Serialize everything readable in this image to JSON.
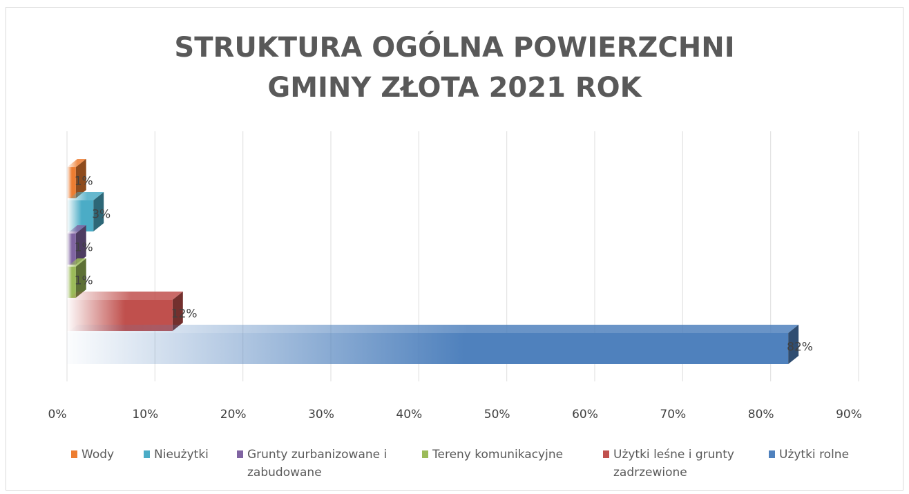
{
  "chart_data": {
    "type": "bar",
    "orientation": "horizontal",
    "title": "STRUKTURA OGÓLNA POWIERZCHNI GMINY ZŁOTA 2021 ROK",
    "series": [
      {
        "name": "Wody",
        "color": "#ed7d31",
        "values": [
          1
        ],
        "value_labels": [
          "1%"
        ]
      },
      {
        "name": "Nieużytki",
        "color": "#4bacc6",
        "values": [
          3
        ],
        "value_labels": [
          "3%"
        ]
      },
      {
        "name": "Grunty zurbanizowane i zabudowane",
        "color": "#8064a2",
        "values": [
          1
        ],
        "value_labels": [
          "1%"
        ]
      },
      {
        "name": "Tereny komunikacyjne",
        "color": "#9bbb59",
        "values": [
          1
        ],
        "value_labels": [
          "1%"
        ]
      },
      {
        "name": "Użytki leśne i grunty zadrzewione",
        "color": "#c0504d",
        "values": [
          12
        ],
        "value_labels": [
          "12%"
        ]
      },
      {
        "name": "Użytki rolne",
        "color": "#4f81bd",
        "values": [
          82
        ],
        "value_labels": [
          "82%"
        ]
      }
    ],
    "xlim": [
      0,
      90
    ],
    "xticks": [
      {
        "value": 0,
        "label": "0%"
      },
      {
        "value": 10,
        "label": "10%"
      },
      {
        "value": 20,
        "label": "20%"
      },
      {
        "value": 30,
        "label": "30%"
      },
      {
        "value": 40,
        "label": "40%"
      },
      {
        "value": 50,
        "label": "50%"
      },
      {
        "value": 60,
        "label": "60%"
      },
      {
        "value": 70,
        "label": "70%"
      },
      {
        "value": 80,
        "label": "80%"
      },
      {
        "value": 90,
        "label": "90%"
      }
    ],
    "grid": true,
    "legend": "bottom"
  }
}
